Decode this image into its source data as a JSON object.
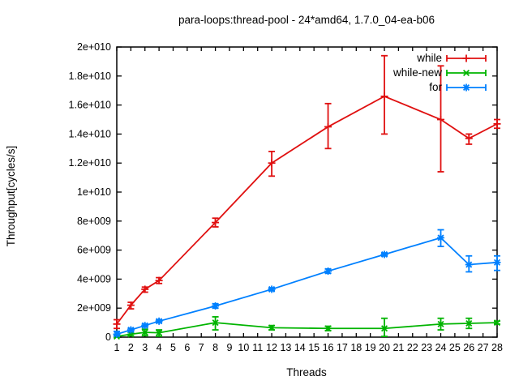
{
  "window": {
    "background": "#ffffff",
    "frame_color": "#000000",
    "text_color": "#000000"
  },
  "chart_data": {
    "type": "line",
    "title": "para-loops:thread-pool - 24*amd64, 1.7.0_04-ea-b06",
    "xlabel": "Threads",
    "ylabel": "Throughput[cycles/s]",
    "xlim": [
      1,
      28
    ],
    "ylim": [
      0,
      20000000000.0
    ],
    "grid": false,
    "error_bars": true,
    "legend_position": "top-right-inside",
    "x_ticks": [
      1,
      2,
      3,
      4,
      5,
      6,
      7,
      8,
      9,
      10,
      11,
      12,
      13,
      14,
      15,
      16,
      17,
      18,
      19,
      20,
      21,
      22,
      23,
      24,
      25,
      26,
      27,
      28
    ],
    "y_ticks": [
      {
        "value": 0,
        "label": "0"
      },
      {
        "value": 2000000000.0,
        "label": "2e+009"
      },
      {
        "value": 4000000000.0,
        "label": "4e+009"
      },
      {
        "value": 6000000000.0,
        "label": "6e+009"
      },
      {
        "value": 8000000000.0,
        "label": "8e+009"
      },
      {
        "value": 10000000000.0,
        "label": "1e+010"
      },
      {
        "value": 12000000000.0,
        "label": "1.2e+010"
      },
      {
        "value": 14000000000.0,
        "label": "1.4e+010"
      },
      {
        "value": 16000000000.0,
        "label": "1.6e+010"
      },
      {
        "value": 18000000000.0,
        "label": "1.8e+010"
      },
      {
        "value": 20000000000.0,
        "label": "2e+010"
      }
    ],
    "series": [
      {
        "name": "while",
        "color": "#e01010",
        "marker": "plus",
        "x": [
          1,
          2,
          3,
          4,
          8,
          12,
          16,
          20,
          24,
          26,
          28
        ],
        "y": [
          900000000.0,
          2200000000.0,
          3300000000.0,
          3900000000.0,
          7900000000.0,
          12000000000.0,
          14500000000.0,
          16600000000.0,
          15000000000.0,
          13700000000.0,
          14700000000.0
        ],
        "y_err_low": [
          600000000.0,
          1950000000.0,
          3100000000.0,
          3700000000.0,
          7600000000.0,
          11100000000.0,
          13000000000.0,
          14000000000.0,
          11400000000.0,
          13300000000.0,
          14400000000.0
        ],
        "y_err_high": [
          1200000000.0,
          2400000000.0,
          3450000000.0,
          4100000000.0,
          8200000000.0,
          12800000000.0,
          16100000000.0,
          19400000000.0,
          18700000000.0,
          14000000000.0,
          15000000000.0
        ]
      },
      {
        "name": "while-new",
        "color": "#00b400",
        "marker": "cross",
        "x": [
          1,
          2,
          3,
          4,
          8,
          12,
          16,
          20,
          24,
          26,
          28
        ],
        "y": [
          50000000.0,
          200000000.0,
          330000000.0,
          300000000.0,
          1000000000.0,
          650000000.0,
          600000000.0,
          600000000.0,
          900000000.0,
          950000000.0,
          1000000000.0
        ],
        "y_err_low": [
          0,
          100000000.0,
          100000000.0,
          60000000.0,
          500000000.0,
          500000000.0,
          450000000.0,
          50000000.0,
          500000000.0,
          600000000.0,
          900000000.0
        ],
        "y_err_high": [
          150000000.0,
          300000000.0,
          550000000.0,
          500000000.0,
          1400000000.0,
          800000000.0,
          750000000.0,
          1300000000.0,
          1300000000.0,
          1300000000.0,
          1100000000.0
        ]
      },
      {
        "name": "for",
        "color": "#0080ff",
        "marker": "star",
        "x": [
          1,
          2,
          3,
          4,
          8,
          12,
          16,
          20,
          24,
          26,
          28
        ],
        "y": [
          200000000.0,
          500000000.0,
          800000000.0,
          1100000000.0,
          2150000000.0,
          3300000000.0,
          4550000000.0,
          5700000000.0,
          6850000000.0,
          5000000000.0,
          5150000000.0
        ],
        "y_err_low": [
          100000000.0,
          400000000.0,
          700000000.0,
          1000000000.0,
          2000000000.0,
          3200000000.0,
          4400000000.0,
          5600000000.0,
          6250000000.0,
          4500000000.0,
          4600000000.0
        ],
        "y_err_high": [
          400000000.0,
          600000000.0,
          900000000.0,
          1200000000.0,
          2300000000.0,
          3400000000.0,
          4700000000.0,
          5800000000.0,
          7400000000.0,
          5600000000.0,
          5600000000.0
        ]
      }
    ]
  }
}
